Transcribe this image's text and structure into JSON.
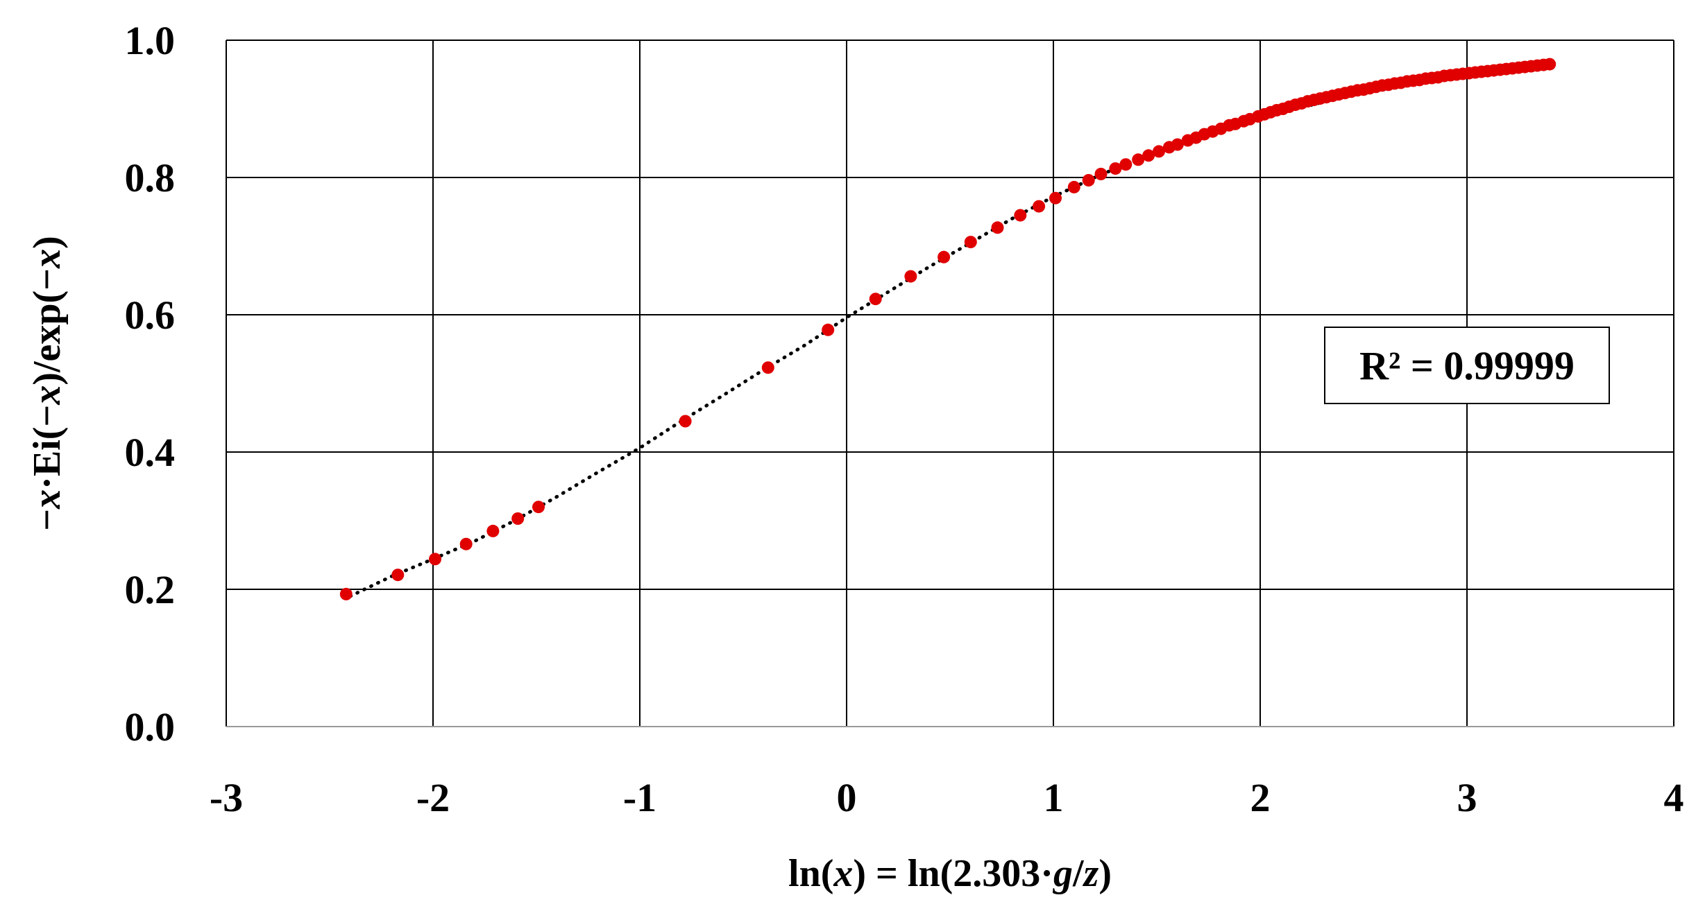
{
  "chart_data": {
    "type": "scatter",
    "xlabel_parts": [
      {
        "text": "ln(",
        "italic": false
      },
      {
        "text": "x",
        "italic": true
      },
      {
        "text": ") = ln(2.303·",
        "italic": false
      },
      {
        "text": "g",
        "italic": true
      },
      {
        "text": "/",
        "italic": false
      },
      {
        "text": "z",
        "italic": true
      },
      {
        "text": ")",
        "italic": false
      }
    ],
    "ylabel_parts": [
      {
        "text": "−",
        "italic": false
      },
      {
        "text": "x",
        "italic": true
      },
      {
        "text": "·Ei(−",
        "italic": false
      },
      {
        "text": "x",
        "italic": true
      },
      {
        "text": ")/exp(−",
        "italic": false
      },
      {
        "text": "x",
        "italic": true
      },
      {
        "text": ")",
        "italic": false
      }
    ],
    "xlim": [
      -3,
      4
    ],
    "ylim": [
      0.0,
      1.0
    ],
    "x_ticks": [
      {
        "value": -3,
        "label": "-3"
      },
      {
        "value": -2,
        "label": "-2"
      },
      {
        "value": -1,
        "label": "-1"
      },
      {
        "value": 0,
        "label": "0"
      },
      {
        "value": 1,
        "label": "1"
      },
      {
        "value": 2,
        "label": "2"
      },
      {
        "value": 3,
        "label": "3"
      },
      {
        "value": 4,
        "label": "4"
      }
    ],
    "y_ticks": [
      {
        "value": 0.0,
        "label": "0.0"
      },
      {
        "value": 0.2,
        "label": "0.2"
      },
      {
        "value": 0.4,
        "label": "0.4"
      },
      {
        "value": 0.6,
        "label": "0.6"
      },
      {
        "value": 0.8,
        "label": "0.8"
      },
      {
        "value": 1.0,
        "label": "1.0"
      }
    ],
    "grid": true,
    "annotation": {
      "text": "R² = 0.99999",
      "x": 3.0,
      "y": 0.6
    },
    "series": [
      {
        "color": "#e00000",
        "marker": "circle",
        "x": [
          -2.42,
          -2.17,
          -1.99,
          -1.84,
          -1.71,
          -1.59,
          -1.49,
          -0.78,
          -0.38,
          -0.09,
          0.14,
          0.31,
          0.47,
          0.6,
          0.73,
          0.84,
          0.93,
          1.01,
          1.1,
          1.17,
          1.23,
          1.3,
          1.35,
          1.41,
          1.46,
          1.51,
          1.56,
          1.6,
          1.65,
          1.69,
          1.73,
          1.77,
          1.81,
          1.85,
          1.88,
          1.92,
          1.95,
          1.99,
          2.02,
          2.05,
          2.08,
          2.11,
          2.14,
          2.17,
          2.2,
          2.23,
          2.26,
          2.29,
          2.32,
          2.35,
          2.38,
          2.41,
          2.44,
          2.47,
          2.5,
          2.53,
          2.56,
          2.59,
          2.62,
          2.65,
          2.68,
          2.71,
          2.74,
          2.77,
          2.8,
          2.83,
          2.86,
          2.89,
          2.92,
          2.95,
          2.98,
          3.01,
          3.04,
          3.07,
          3.1,
          3.13,
          3.16,
          3.19,
          3.22,
          3.25,
          3.28,
          3.31,
          3.34,
          3.37,
          3.4
        ],
        "y": [
          0.193,
          0.221,
          0.244,
          0.266,
          0.285,
          0.303,
          0.32,
          0.445,
          0.523,
          0.578,
          0.623,
          0.656,
          0.684,
          0.706,
          0.727,
          0.745,
          0.758,
          0.77,
          0.786,
          0.796,
          0.805,
          0.813,
          0.819,
          0.826,
          0.832,
          0.838,
          0.844,
          0.848,
          0.854,
          0.858,
          0.863,
          0.867,
          0.871,
          0.876,
          0.878,
          0.882,
          0.885,
          0.889,
          0.892,
          0.895,
          0.898,
          0.9,
          0.903,
          0.906,
          0.908,
          0.911,
          0.913,
          0.915,
          0.917,
          0.919,
          0.921,
          0.923,
          0.925,
          0.927,
          0.928,
          0.93,
          0.932,
          0.934,
          0.935,
          0.937,
          0.938,
          0.94,
          0.941,
          0.942,
          0.944,
          0.945,
          0.946,
          0.948,
          0.949,
          0.95,
          0.951,
          0.952,
          0.953,
          0.954,
          0.955,
          0.956,
          0.957,
          0.958,
          0.959,
          0.96,
          0.961,
          0.962,
          0.963,
          0.964,
          0.965
        ]
      }
    ],
    "trendline": {
      "style": "dotted",
      "color": "#000000",
      "x": [
        -2.4,
        -2.2,
        -2.0,
        -1.8,
        -1.6,
        -1.4,
        -1.2,
        -1.0,
        -0.8,
        -0.6,
        -0.4,
        -0.2,
        0.0,
        0.2,
        0.4,
        0.6,
        0.8,
        1.0,
        1.2,
        1.4,
        1.6,
        1.8,
        2.0,
        2.2,
        2.4,
        2.6,
        2.8,
        3.0,
        3.2,
        3.4
      ],
      "y": [
        0.19,
        0.219,
        0.244,
        0.27,
        0.301,
        0.335,
        0.371,
        0.406,
        0.445,
        0.482,
        0.52,
        0.556,
        0.596,
        0.633,
        0.67,
        0.705,
        0.74,
        0.772,
        0.8,
        0.826,
        0.848,
        0.868,
        0.886,
        0.902,
        0.917,
        0.931,
        0.943,
        0.952,
        0.959,
        0.964
      ]
    }
  }
}
